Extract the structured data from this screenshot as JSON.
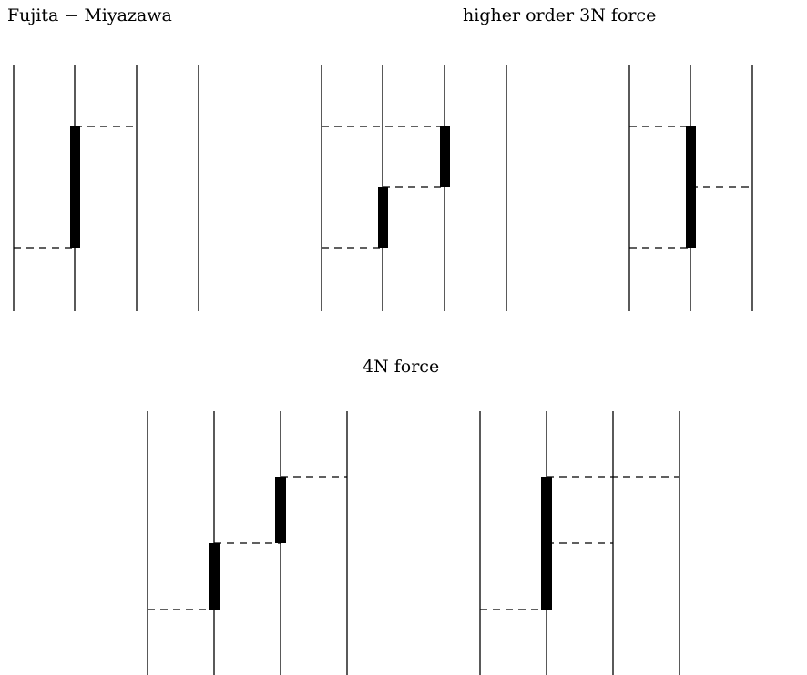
{
  "labels": {
    "fujita_miyazawa": "Fujita − Miyazawa",
    "higher_order_3n": "higher order 3N force",
    "four_n": "4N force"
  },
  "colors": {
    "ink": "#000000",
    "background": "#ffffff"
  }
}
